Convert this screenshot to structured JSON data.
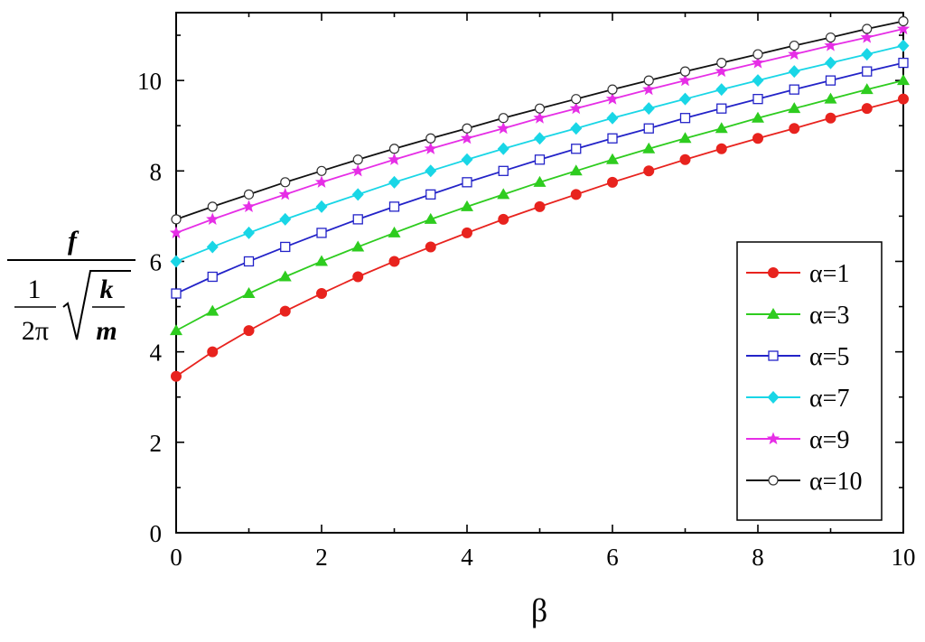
{
  "chart_data": {
    "type": "line",
    "xlabel": "β",
    "ylabel": {
      "numerator": "f",
      "denominator_coef_num": "1",
      "denominator_coef_den": "2π",
      "sqrt_num": "k",
      "sqrt_den": "m"
    },
    "xlim": [
      0,
      10
    ],
    "ylim": [
      0,
      11.5
    ],
    "xticks": [
      0,
      2,
      4,
      6,
      8,
      10
    ],
    "xtick_labels": [
      "0",
      "2",
      "4",
      "6",
      "8",
      "10"
    ],
    "yticks": [
      0,
      2,
      4,
      6,
      8,
      10
    ],
    "ytick_labels": [
      "0",
      "2",
      "4",
      "6",
      "8",
      "10"
    ],
    "grid": false,
    "legend_position": "bottom-right",
    "x": [
      0,
      0.5,
      1,
      1.5,
      2,
      2.5,
      3,
      3.5,
      4,
      4.5,
      5,
      5.5,
      6,
      6.5,
      7,
      7.5,
      8,
      8.5,
      9,
      9.5,
      10
    ],
    "series": [
      {
        "name": "α=1",
        "color": "#e8231e",
        "marker": "filled-circle",
        "values": [
          3.46,
          4.0,
          4.47,
          4.9,
          5.29,
          5.66,
          6.0,
          6.32,
          6.63,
          6.93,
          7.21,
          7.48,
          7.75,
          8.0,
          8.25,
          8.49,
          8.72,
          8.94,
          9.17,
          9.38,
          9.59
        ]
      },
      {
        "name": "α=3",
        "color": "#2ecc1f",
        "marker": "filled-triangle",
        "values": [
          4.47,
          4.9,
          5.29,
          5.66,
          6.0,
          6.32,
          6.63,
          6.93,
          7.21,
          7.48,
          7.75,
          8.0,
          8.25,
          8.49,
          8.72,
          8.94,
          9.17,
          9.38,
          9.59,
          9.8,
          10.0
        ]
      },
      {
        "name": "α=5",
        "color": "#2323c8",
        "marker": "open-square",
        "values": [
          5.29,
          5.66,
          6.0,
          6.32,
          6.63,
          6.93,
          7.21,
          7.48,
          7.75,
          8.0,
          8.25,
          8.49,
          8.72,
          8.94,
          9.17,
          9.38,
          9.59,
          9.8,
          10.0,
          10.2,
          10.39
        ]
      },
      {
        "name": "α=7",
        "color": "#19d6e6",
        "marker": "filled-diamond",
        "values": [
          6.0,
          6.32,
          6.63,
          6.93,
          7.21,
          7.48,
          7.75,
          8.0,
          8.25,
          8.49,
          8.72,
          8.94,
          9.17,
          9.38,
          9.59,
          9.8,
          10.0,
          10.2,
          10.39,
          10.58,
          10.77
        ]
      },
      {
        "name": "α=9",
        "color": "#e62ee6",
        "marker": "filled-star",
        "values": [
          6.63,
          6.93,
          7.21,
          7.48,
          7.75,
          8.0,
          8.25,
          8.49,
          8.72,
          8.94,
          9.17,
          9.38,
          9.59,
          9.8,
          10.0,
          10.2,
          10.39,
          10.58,
          10.77,
          10.95,
          11.14
        ]
      },
      {
        "name": "α=10",
        "color": "#111111",
        "marker": "open-circle",
        "values": [
          6.93,
          7.21,
          7.48,
          7.75,
          8.0,
          8.25,
          8.49,
          8.72,
          8.94,
          9.17,
          9.38,
          9.59,
          9.8,
          10.0,
          10.2,
          10.39,
          10.58,
          10.77,
          10.95,
          11.14,
          11.31
        ]
      }
    ]
  }
}
